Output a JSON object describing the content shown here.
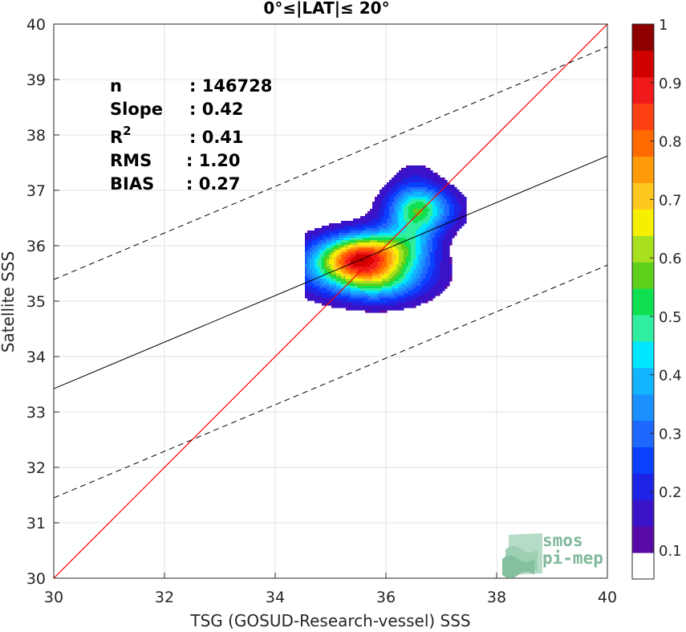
{
  "chart_data": {
    "type": "heatmap",
    "title": "0°≤|LAT|≤ 20°",
    "xlabel": "TSG (GOSUD-Research-vessel) SSS",
    "ylabel": "Satellite SSS",
    "xlim": [
      30,
      40
    ],
    "ylim": [
      30,
      40
    ],
    "xticks": [
      "30",
      "32",
      "34",
      "36",
      "38",
      "40"
    ],
    "yticks": [
      "30",
      "31",
      "32",
      "33",
      "34",
      "35",
      "36",
      "37",
      "38",
      "39",
      "40"
    ],
    "grid": true,
    "stats": [
      {
        "label": "n",
        "value": ": 146728"
      },
      {
        "label": "Slope",
        "value": ": 0.42"
      },
      {
        "label": "R",
        "sup": "2",
        "value": ": 0.41"
      },
      {
        "label": "RMS",
        "value": ": 1.20"
      },
      {
        "label": "BIAS",
        "value": ": 0.27"
      }
    ],
    "identity_line": {
      "color": "#ff0000",
      "from": [
        30,
        30
      ],
      "to": [
        40,
        40
      ]
    },
    "fit_line": {
      "slope": 0.42,
      "intercept": 20.82,
      "color": "#000000"
    },
    "confidence_lines": {
      "offset": 1.97,
      "style": "dashed"
    },
    "density_peaks": [
      {
        "x": 35.4,
        "y": 35.82,
        "density": 1.0
      },
      {
        "x": 36.0,
        "y": 35.97,
        "density": 0.8
      },
      {
        "x": 36.65,
        "y": 36.68,
        "density": 0.75
      },
      {
        "x": 35.85,
        "y": 35.38,
        "density": 0.5
      }
    ],
    "colorbar": {
      "range": [
        0,
        1
      ],
      "ticks": [
        "0.1",
        "0.2",
        "0.3",
        "0.4",
        "0.5",
        "0.6",
        "0.7",
        "0.8",
        "0.9",
        "1"
      ],
      "colors": [
        "#ffffff",
        "#5a0aa8",
        "#3a12c8",
        "#1e24e6",
        "#0a40ff",
        "#1e68ff",
        "#1a90ff",
        "#12b4ff",
        "#00e6ff",
        "#30eea0",
        "#0ee050",
        "#5ed01c",
        "#a8e020",
        "#f6f000",
        "#ffc81e",
        "#ff9a08",
        "#ff6a00",
        "#ff4012",
        "#f01a1a",
        "#d00000",
        "#8e0000"
      ]
    }
  },
  "logo": {
    "line1": "smos",
    "line2": "pi-mep"
  }
}
